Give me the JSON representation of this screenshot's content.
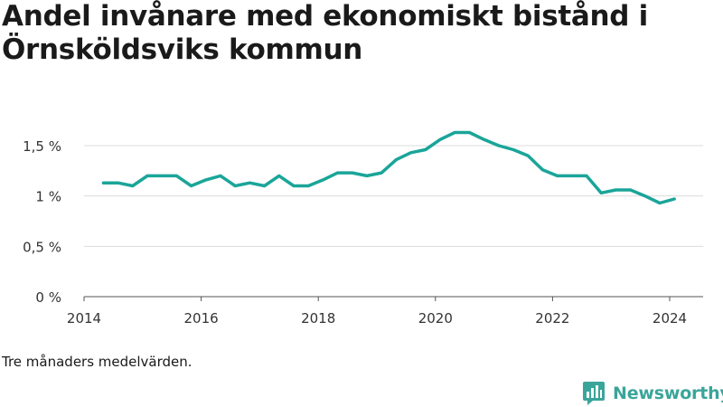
{
  "title": "Andel invånare med ekonomiskt bistånd i Örnsköldsviks kommun",
  "footnote": "Tre månaders medelvärden.",
  "brand": {
    "name": "Newsworthy",
    "logo_icon": "bar-chart-speech-icon",
    "color": "#3aa59a"
  },
  "chart_data": {
    "type": "line",
    "title": "Andel invånare med ekonomiskt bistånd i Örnsköldsviks kommun",
    "xlabel": "",
    "ylabel": "",
    "xlim": [
      2014,
      2024.3
    ],
    "ylim": [
      0,
      1.8
    ],
    "x_ticks": [
      2014,
      2016,
      2018,
      2020,
      2022,
      2024
    ],
    "x_tick_labels": [
      "2014",
      "2016",
      "2018",
      "2020",
      "2022",
      "2024"
    ],
    "y_ticks": [
      0,
      0.5,
      1,
      1.5
    ],
    "y_tick_labels": [
      "0 %",
      "0,5 %",
      "1 %",
      "1,5 %"
    ],
    "grid": "horizontal",
    "line_color": "#1aa599",
    "series": [
      {
        "x": [
          2014.33,
          2014.58,
          2014.83,
          2015.08,
          2015.33,
          2015.58,
          2015.83,
          2016.08,
          2016.33,
          2016.58,
          2016.83,
          2017.08,
          2017.33,
          2017.58,
          2017.83,
          2018.08,
          2018.33,
          2018.58,
          2018.83,
          2019.08,
          2019.33,
          2019.58,
          2019.83,
          2020.08,
          2020.33,
          2020.58,
          2020.83,
          2021.08,
          2021.33,
          2021.58,
          2021.83,
          2022.08,
          2022.33,
          2022.58,
          2022.83,
          2023.08,
          2023.33,
          2023.58,
          2023.83,
          2024.08
        ],
        "values": [
          1.13,
          1.13,
          1.1,
          1.2,
          1.2,
          1.2,
          1.1,
          1.16,
          1.2,
          1.1,
          1.13,
          1.1,
          1.2,
          1.1,
          1.1,
          1.16,
          1.23,
          1.23,
          1.2,
          1.23,
          1.36,
          1.43,
          1.46,
          1.56,
          1.63,
          1.63,
          1.56,
          1.5,
          1.46,
          1.4,
          1.26,
          1.2,
          1.2,
          1.2,
          1.03,
          1.06,
          1.06,
          1.0,
          0.93,
          0.97
        ]
      }
    ]
  }
}
